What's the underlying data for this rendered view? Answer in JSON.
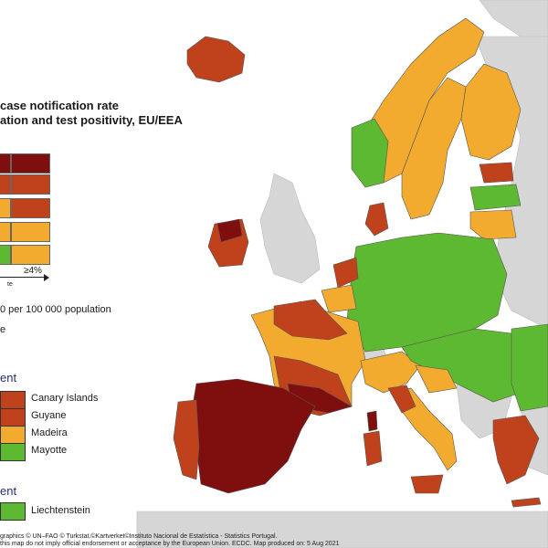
{
  "title_line1": "case notification rate",
  "title_line2": "ation and test positivity, EU/EEA",
  "colors": {
    "dark_red": "#7f0f0f",
    "red": "#c0421c",
    "orange": "#f2ab2f",
    "green": "#5db832",
    "grey": "#d6d6d6",
    "water": "#ffffff"
  },
  "legend": {
    "axis_label": "≥4%",
    "axis_sub": "te",
    "rate_note": "0 per 100 000 population",
    "rate_note2": "e",
    "section1_heading": "ent",
    "section2_heading": "ent",
    "regions": [
      {
        "label": "Canary Islands",
        "color": "#c0421c"
      },
      {
        "label": "Guyane",
        "color": "#c0421c"
      },
      {
        "label": "Madeira",
        "color": "#f2ab2f"
      },
      {
        "label": "Mayotte",
        "color": "#5db832"
      }
    ],
    "region2": {
      "label": "Liechtenstein",
      "color": "#5db832"
    }
  },
  "credits": {
    "line1": "graphics © UN–FAO © Turkstat.©Kartverket©Instituto Nacional de Estatística - Statistics Portugal.",
    "line2": "this map do not imply official endorsement or acceptance by the European Union. ECDC. Map produced on: 5 Aug 2021"
  }
}
